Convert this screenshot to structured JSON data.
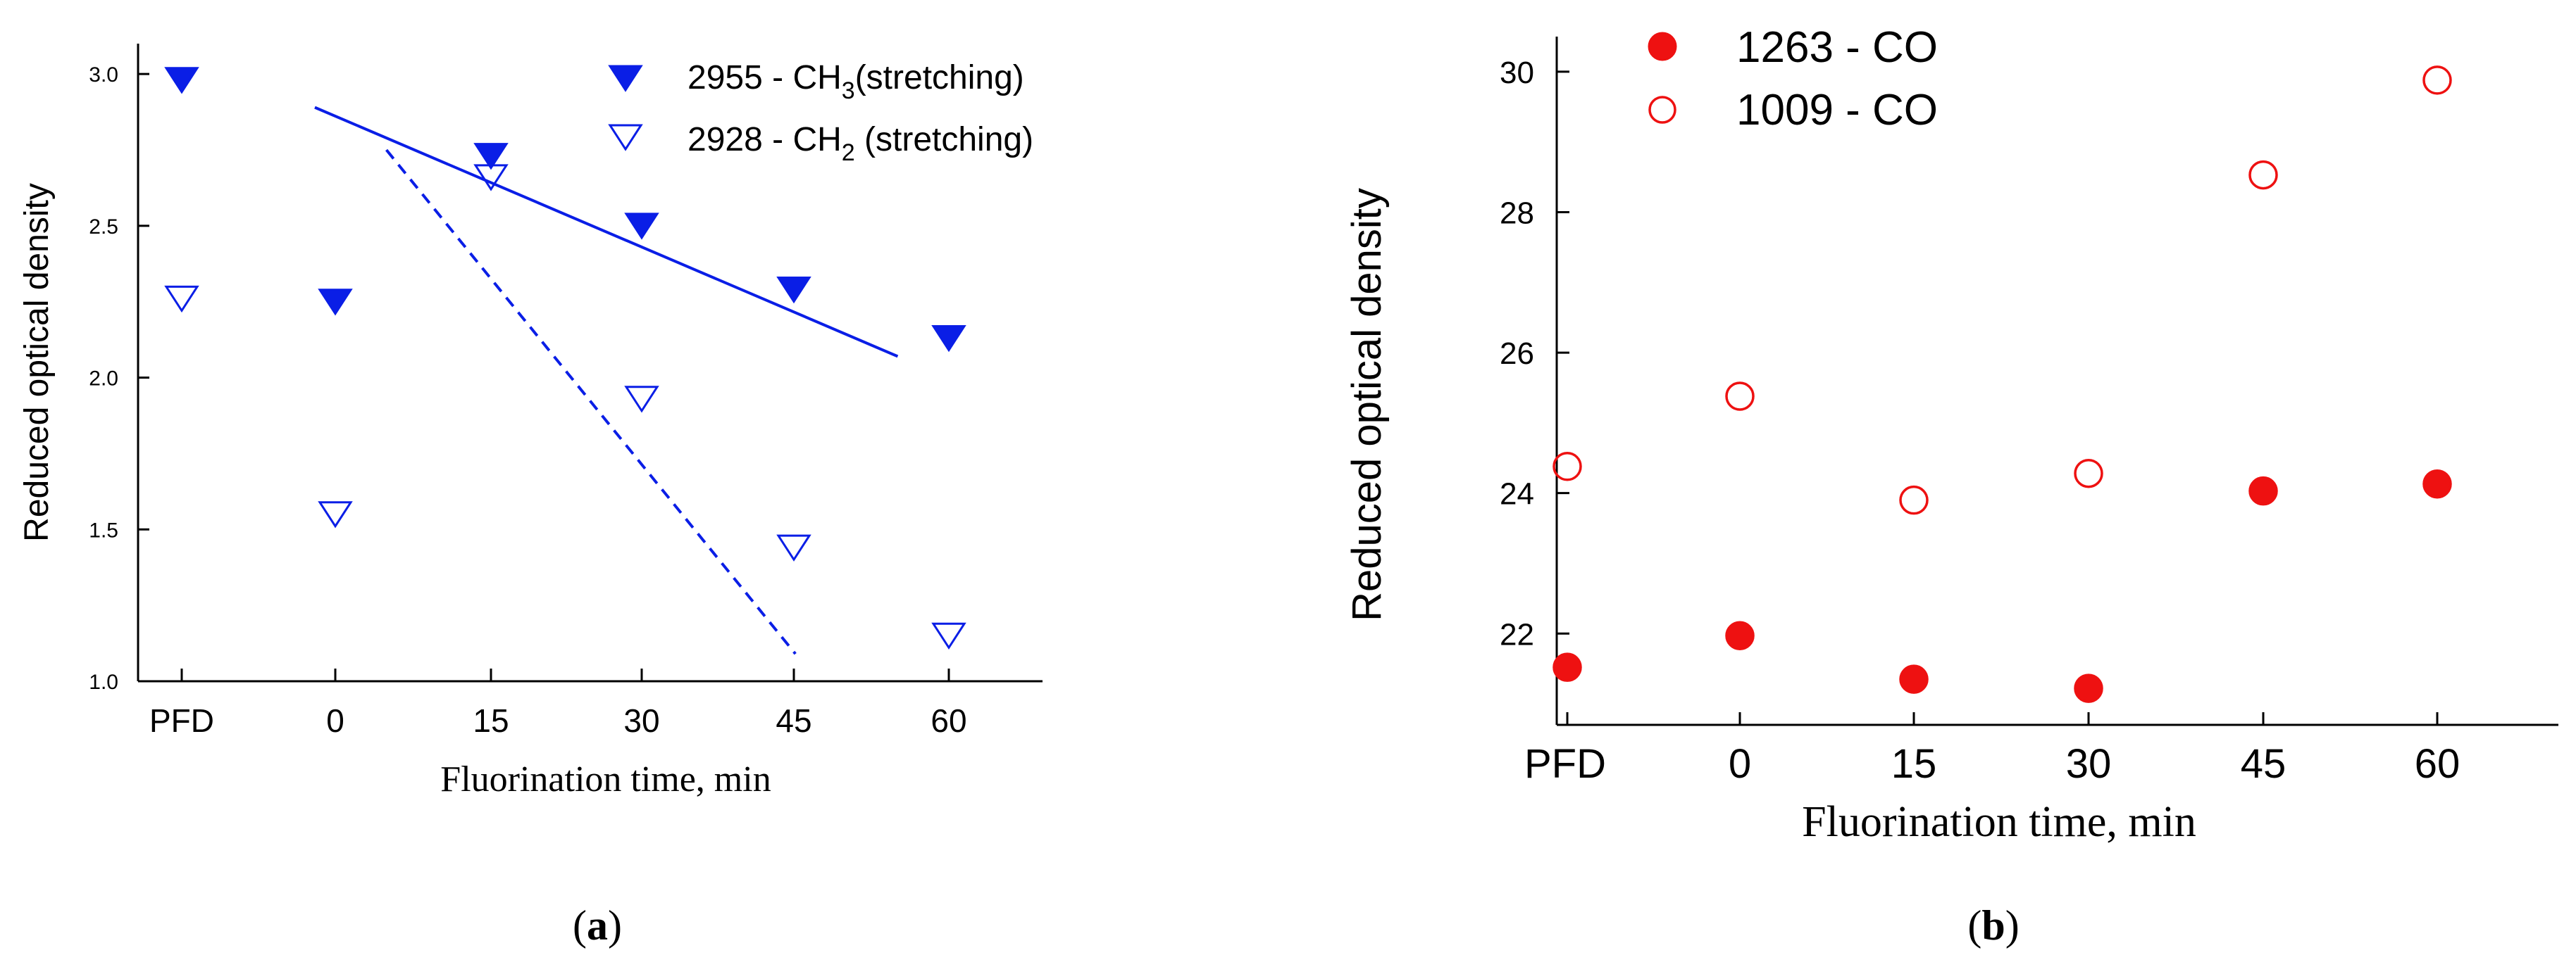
{
  "colors": {
    "panel_a": "#0a1ee6",
    "panel_b": "#ee1111",
    "axis": "#000000"
  },
  "chart_data": [
    {
      "panel_label_open": "(",
      "panel_label_letter": "a",
      "panel_label_close": ")",
      "type": "scatter",
      "xlabel": "Fluorination time, min",
      "ylabel": "Reduced optical density",
      "categories": [
        "PFD",
        "0",
        "15",
        "30",
        "45",
        "60"
      ],
      "ylim": [
        1.0,
        3.1
      ],
      "yticks": [
        "1.0",
        "1.5",
        "2.0",
        "2.5",
        "3.0"
      ],
      "series": [
        {
          "name_prefix": "2955 - CH",
          "name_sub": "3",
          "name_suffix": "(stretching)",
          "marker": "triangle-down-filled",
          "values": [
            2.98,
            2.25,
            2.73,
            2.5,
            2.29,
            2.13
          ],
          "trend": {
            "style": "solid",
            "x_start": 13,
            "y_start": 2.89,
            "x_end": 70,
            "y_end": 2.07
          }
        },
        {
          "name_prefix": "2928 - CH",
          "name_sub": "2",
          "name_suffix": " (stretching)",
          "marker": "triangle-down-open",
          "values": [
            2.26,
            1.55,
            2.66,
            1.93,
            1.44,
            1.15
          ],
          "trend": {
            "style": "dashed",
            "x_start": 20,
            "y_start": 2.75,
            "x_end": 60,
            "y_end": 1.09
          }
        }
      ]
    },
    {
      "panel_label_open": "(",
      "panel_label_letter": "b",
      "panel_label_close": ")",
      "type": "scatter",
      "xlabel": "Fluorination time, min",
      "ylabel": "Reduced optical density",
      "categories": [
        "PFD",
        "0",
        "15",
        "30",
        "45",
        "60"
      ],
      "ylim": [
        20.7,
        30.5
      ],
      "yticks": [
        "22",
        "24",
        "26",
        "28",
        "30"
      ],
      "series": [
        {
          "name": "1263 - CO",
          "marker": "circle-filled",
          "values": [
            21.52,
            21.97,
            21.35,
            21.22,
            24.03,
            24.13
          ]
        },
        {
          "name": "1009 - CO",
          "marker": "circle-open",
          "values": [
            24.38,
            25.38,
            23.9,
            24.28,
            28.53,
            29.88
          ]
        }
      ]
    }
  ]
}
